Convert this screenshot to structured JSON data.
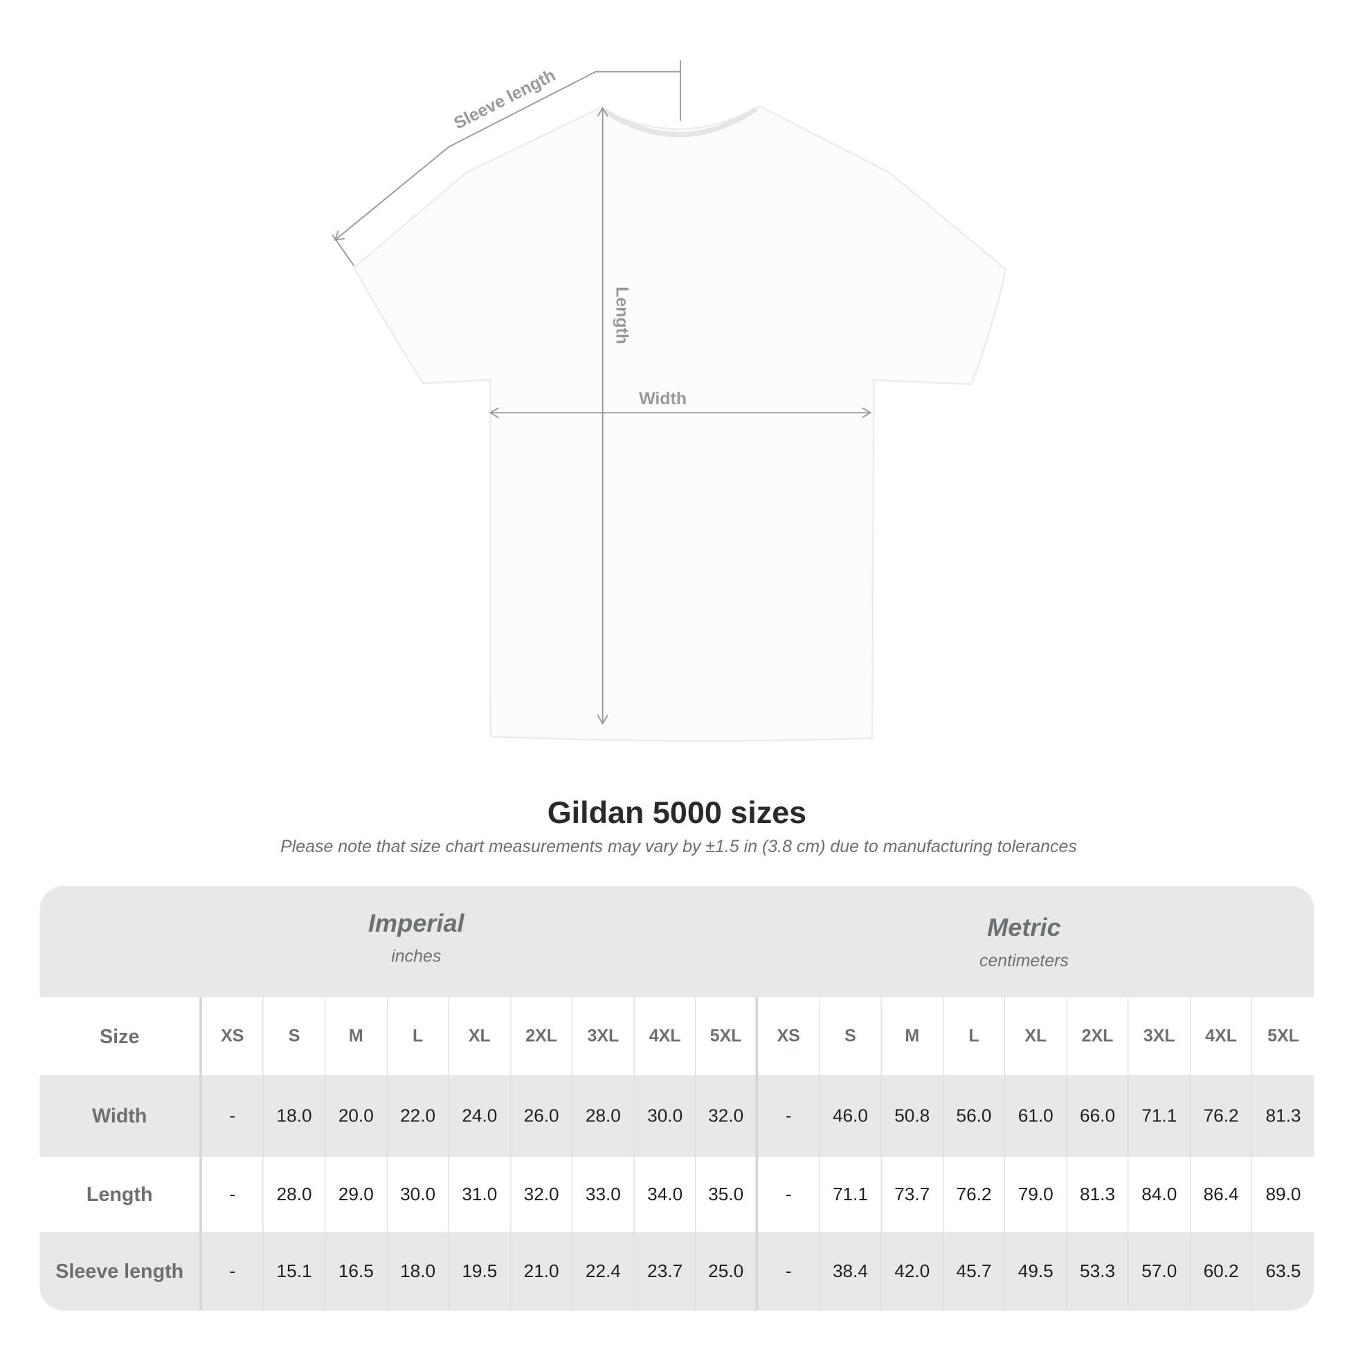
{
  "diagram": {
    "sleeve_label": "Sleeve length",
    "length_label": "Length",
    "width_label": "Width"
  },
  "title": "Gildan 5000 sizes",
  "note": "Please note that size chart measurements may vary by ±1.5 in (3.8 cm) due to manufacturing tolerances",
  "table": {
    "imperial": {
      "name": "Imperial",
      "unit": "inches"
    },
    "metric": {
      "name": "Metric",
      "unit": "centimeters"
    },
    "size_label": "Size",
    "sizes": [
      "XS",
      "S",
      "M",
      "L",
      "XL",
      "2XL",
      "3XL",
      "4XL",
      "5XL"
    ],
    "rows": [
      {
        "label": "Width",
        "imperial": [
          "-",
          "18.0",
          "20.0",
          "22.0",
          "24.0",
          "26.0",
          "28.0",
          "30.0",
          "32.0"
        ],
        "metric": [
          "-",
          "46.0",
          "50.8",
          "56.0",
          "61.0",
          "66.0",
          "71.1",
          "76.2",
          "81.3"
        ]
      },
      {
        "label": "Length",
        "imperial": [
          "-",
          "28.0",
          "29.0",
          "30.0",
          "31.0",
          "32.0",
          "33.0",
          "34.0",
          "35.0"
        ],
        "metric": [
          "-",
          "71.1",
          "73.7",
          "76.2",
          "79.0",
          "81.3",
          "84.0",
          "86.4",
          "89.0"
        ]
      },
      {
        "label": "Sleeve length",
        "imperial": [
          "-",
          "15.1",
          "16.5",
          "18.0",
          "19.5",
          "21.0",
          "22.4",
          "23.7",
          "25.0"
        ],
        "metric": [
          "-",
          "38.4",
          "42.0",
          "45.7",
          "49.5",
          "53.3",
          "57.0",
          "60.2",
          "63.5"
        ]
      }
    ]
  }
}
